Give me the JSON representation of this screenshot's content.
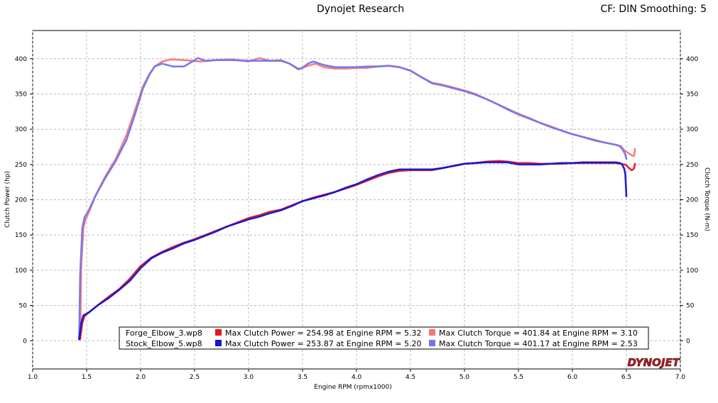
{
  "header": {
    "title": "Dynojet Research",
    "cf_smoothing": "CF: DIN Smoothing: 5"
  },
  "logo": {
    "text": "DYNOJET"
  },
  "chart_data": {
    "type": "line",
    "xlabel": "Engine RPM (rpmx1000)",
    "ylabel_left": "Clutch Power (hp)",
    "ylabel_right": "Clutch Torque (N-m)",
    "xlim": [
      1.0,
      7.0
    ],
    "ylim": [
      -40,
      440
    ],
    "x_ticks": [
      "1.0",
      "1.5",
      "2.0",
      "2.5",
      "3.0",
      "3.5",
      "4.0",
      "4.5",
      "5.0",
      "5.5",
      "6.0",
      "6.5",
      "7.0"
    ],
    "y_ticks": [
      "0",
      "50",
      "100",
      "150",
      "200",
      "250",
      "300",
      "350",
      "400"
    ],
    "grid": true,
    "legend_position": "bottom-center",
    "legend": [
      {
        "file": "Forge_Elbow_3.wp8",
        "power_text": "Max Clutch Power = 254.98 at Engine RPM = 5.32",
        "torque_text": "Max Clutch Torque = 401.84 at Engine RPM = 3.10",
        "power_color": "#e8141e",
        "torque_color": "#f47878"
      },
      {
        "file": "Stock_Elbow_5.wp8",
        "power_text": "Max Clutch Power = 253.87 at Engine RPM = 5.20",
        "torque_text": "Max Clutch Torque = 401.17 at Engine RPM = 2.53",
        "power_color": "#1414d2",
        "torque_color": "#7474ee"
      }
    ],
    "series": [
      {
        "name": "Forge_Elbow_3.wp8",
        "quantity": "Clutch Torque",
        "color": "#f47878",
        "x": [
          1.44,
          1.45,
          1.47,
          1.49,
          1.52,
          1.58,
          1.67,
          1.77,
          1.87,
          1.95,
          2.02,
          2.08,
          2.13,
          2.2,
          2.28,
          2.4,
          2.55,
          2.7,
          2.85,
          3.0,
          3.1,
          3.2,
          3.3,
          3.38,
          3.46,
          3.5,
          3.55,
          3.62,
          3.7,
          3.8,
          3.9,
          4.0,
          4.1,
          4.2,
          4.3,
          4.4,
          4.5,
          4.6,
          4.7,
          4.8,
          4.9,
          5.0,
          5.1,
          5.2,
          5.3,
          5.4,
          5.5,
          5.6,
          5.7,
          5.8,
          5.9,
          6.0,
          6.1,
          6.2,
          6.3,
          6.4,
          6.45,
          6.48,
          6.5,
          6.52,
          6.55,
          6.57,
          6.58
        ],
        "y": [
          2,
          105,
          160,
          172,
          182,
          205,
          232,
          258,
          292,
          328,
          360,
          378,
          389,
          396,
          399,
          398,
          396,
          398,
          399,
          396,
          401,
          397,
          398,
          393,
          386,
          387,
          390,
          393,
          388,
          386,
          386,
          387,
          387,
          389,
          390,
          388,
          383,
          374,
          366,
          363,
          359,
          355,
          350,
          343,
          336,
          329,
          322,
          316,
          309,
          304,
          298,
          293,
          289,
          284,
          281,
          278,
          276,
          270,
          268,
          266,
          263,
          262,
          272
        ]
      },
      {
        "name": "Stock_Elbow_5.wp8",
        "quantity": "Clutch Torque",
        "color": "#7474ee",
        "x": [
          1.43,
          1.44,
          1.46,
          1.48,
          1.52,
          1.58,
          1.67,
          1.77,
          1.87,
          1.95,
          2.02,
          2.08,
          2.13,
          2.2,
          2.3,
          2.4,
          2.48,
          2.53,
          2.6,
          2.7,
          2.85,
          3.0,
          3.1,
          3.2,
          3.3,
          3.38,
          3.46,
          3.5,
          3.55,
          3.6,
          3.7,
          3.8,
          3.9,
          4.0,
          4.1,
          4.2,
          4.3,
          4.4,
          4.5,
          4.6,
          4.7,
          4.8,
          4.9,
          5.0,
          5.1,
          5.2,
          5.3,
          5.4,
          5.5,
          5.6,
          5.7,
          5.8,
          5.9,
          6.0,
          6.1,
          6.2,
          6.3,
          6.4,
          6.44,
          6.47,
          6.49,
          6.5
        ],
        "y": [
          2,
          95,
          160,
          175,
          185,
          205,
          230,
          255,
          285,
          322,
          357,
          377,
          389,
          393,
          389,
          389,
          396,
          401,
          397,
          398,
          398,
          397,
          397,
          397,
          397,
          393,
          385,
          387,
          393,
          396,
          391,
          388,
          388,
          388,
          389,
          389,
          390,
          388,
          383,
          374,
          365,
          362,
          358,
          354,
          349,
          343,
          336,
          328,
          321,
          315,
          309,
          303,
          298,
          293,
          289,
          285,
          281,
          278,
          276,
          270,
          264,
          258
        ]
      },
      {
        "name": "Forge_Elbow_3.wp8",
        "quantity": "Clutch Power",
        "color": "#e8141e",
        "x": [
          1.44,
          1.46,
          1.48,
          1.52,
          1.6,
          1.7,
          1.8,
          1.9,
          2.0,
          2.1,
          2.2,
          2.3,
          2.4,
          2.5,
          2.6,
          2.7,
          2.8,
          2.9,
          3.0,
          3.1,
          3.2,
          3.3,
          3.4,
          3.5,
          3.6,
          3.7,
          3.8,
          3.9,
          4.0,
          4.1,
          4.2,
          4.3,
          4.4,
          4.5,
          4.6,
          4.7,
          4.8,
          4.9,
          5.0,
          5.1,
          5.2,
          5.32,
          5.4,
          5.5,
          5.6,
          5.7,
          5.8,
          5.9,
          6.0,
          6.1,
          6.2,
          6.3,
          6.4,
          6.45,
          6.5,
          6.53,
          6.55,
          6.57,
          6.58
        ],
        "y": [
          3,
          25,
          35,
          40,
          50,
          62,
          73,
          88,
          106,
          118,
          126,
          133,
          139,
          144,
          150,
          156,
          162,
          168,
          174,
          178,
          183,
          186,
          192,
          198,
          203,
          207,
          211,
          216,
          221,
          227,
          233,
          238,
          241,
          242,
          242,
          242,
          245,
          248,
          251,
          252,
          254,
          255,
          254,
          252,
          252,
          251,
          251,
          251,
          252,
          252,
          252,
          252,
          252,
          251,
          249,
          244,
          242,
          244,
          251
        ]
      },
      {
        "name": "Stock_Elbow_5.wp8",
        "quantity": "Clutch Power",
        "color": "#1414d2",
        "x": [
          1.43,
          1.45,
          1.47,
          1.52,
          1.6,
          1.7,
          1.8,
          1.9,
          2.0,
          2.1,
          2.2,
          2.3,
          2.4,
          2.5,
          2.6,
          2.7,
          2.8,
          2.9,
          3.0,
          3.1,
          3.2,
          3.3,
          3.4,
          3.5,
          3.6,
          3.7,
          3.8,
          3.9,
          4.0,
          4.1,
          4.2,
          4.3,
          4.4,
          4.5,
          4.6,
          4.7,
          4.8,
          4.9,
          5.0,
          5.1,
          5.2,
          5.3,
          5.4,
          5.5,
          5.6,
          5.7,
          5.8,
          5.9,
          6.0,
          6.1,
          6.2,
          6.3,
          6.4,
          6.44,
          6.46,
          6.48,
          6.49,
          6.5
        ],
        "y": [
          2,
          25,
          36,
          40,
          50,
          60,
          72,
          85,
          103,
          117,
          125,
          131,
          138,
          143,
          149,
          155,
          162,
          167,
          172,
          176,
          181,
          185,
          191,
          198,
          202,
          206,
          211,
          217,
          222,
          229,
          235,
          240,
          243,
          243,
          243,
          243,
          245,
          248,
          251,
          252,
          253,
          253,
          253,
          250,
          250,
          250,
          251,
          252,
          252,
          253,
          253,
          253,
          253,
          252,
          250,
          244,
          236,
          205
        ]
      }
    ]
  }
}
